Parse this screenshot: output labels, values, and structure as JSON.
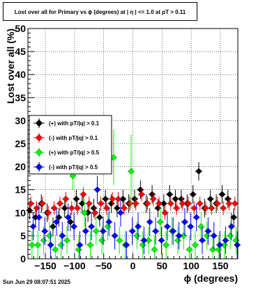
{
  "title": "Lost over all for Primary vs ϕ (degrees) at |  η | <= 1.0 at pT > 0.11",
  "footer": "Sun Jun 29 08:07:51 2025",
  "chart_data": {
    "type": "scatter",
    "xlabel": "ϕ (degrees)",
    "ylabel": "Lost over all (%)",
    "xlim": [
      -180,
      180
    ],
    "ylim": [
      0,
      50
    ],
    "x_ticks": [
      -150,
      -100,
      -50,
      0,
      50,
      100,
      150
    ],
    "x_tick_labels": [
      "−150",
      "−100",
      "−50",
      "0",
      "50",
      "100",
      "150"
    ],
    "y_ticks": [
      0,
      5,
      10,
      15,
      20,
      25,
      30,
      35,
      40,
      45,
      50
    ],
    "y_tick_labels": [
      "0",
      "5",
      "10",
      "15",
      "20",
      "25",
      "30",
      "35",
      "40",
      "45",
      "50"
    ],
    "grid": true,
    "legend_position": "center-left",
    "series": [
      {
        "name": "(+) with pT/|q| > 0.1",
        "color": "#000000",
        "x": [
          -177,
          -167,
          -157,
          -147,
          -137,
          -127,
          -117,
          -107,
          -97,
          -87,
          -77,
          -67,
          -57,
          -47,
          -37,
          -27,
          -17,
          -7,
          3,
          13,
          23,
          33,
          43,
          53,
          63,
          73,
          83,
          93,
          103,
          113,
          123,
          133,
          143,
          153,
          163,
          173
        ],
        "y": [
          10.5,
          9,
          12,
          10,
          7,
          9,
          11,
          8,
          13,
          12,
          10,
          11,
          9,
          13,
          12,
          11,
          13,
          12,
          13,
          15,
          12,
          14,
          11,
          12,
          14,
          13,
          13,
          12,
          14,
          19,
          11,
          13,
          12,
          14,
          13,
          9
        ],
        "err": [
          2,
          2,
          2,
          2,
          2,
          2,
          2,
          2,
          2,
          2,
          2,
          2,
          2,
          2,
          2,
          2,
          2,
          2,
          2,
          2,
          2,
          2,
          2,
          2,
          2,
          2,
          2,
          2,
          2,
          2,
          2,
          2,
          2,
          2,
          2,
          2
        ]
      },
      {
        "name": "(-) with pT/|q| > 0.1",
        "color": "#ff0000",
        "x": [
          -175,
          -165,
          -155,
          -145,
          -135,
          -125,
          -115,
          -105,
          -95,
          -85,
          -75,
          -65,
          -55,
          -45,
          -35,
          -25,
          -15,
          -5,
          5,
          15,
          25,
          35,
          45,
          55,
          65,
          75,
          85,
          95,
          105,
          115,
          125,
          135,
          145,
          155,
          165,
          175
        ],
        "y": [
          12,
          11,
          12,
          10,
          11,
          12,
          13,
          11,
          11,
          14,
          12,
          10,
          12,
          11,
          13,
          13,
          11,
          12,
          12,
          14,
          12,
          13,
          12,
          10,
          12,
          11,
          12,
          12,
          11,
          12,
          11,
          11,
          12,
          11,
          12,
          12
        ],
        "err": [
          1.5,
          1.5,
          1.5,
          1.5,
          1.5,
          1.5,
          1.5,
          1.5,
          1.5,
          1.5,
          1.5,
          1.5,
          1.5,
          1.5,
          1.5,
          1.5,
          1.5,
          1.5,
          1.5,
          1.5,
          1.5,
          1.5,
          1.5,
          1.5,
          1.5,
          1.5,
          1.5,
          1.5,
          1.5,
          1.5,
          1.5,
          1.5,
          1.5,
          1.5,
          1.5,
          1.5
        ]
      },
      {
        "name": "(+) with pT/|q| > 0.5",
        "color": "#00ff00",
        "x": [
          -173,
          -163,
          -153,
          -143,
          -133,
          -123,
          -113,
          -103,
          -93,
          -83,
          -73,
          -63,
          -53,
          -43,
          -33,
          -23,
          -13,
          -3,
          7,
          17,
          27,
          37,
          47,
          57,
          67,
          77,
          87,
          97,
          107,
          117,
          127,
          137,
          147,
          157,
          167,
          177
        ],
        "y": [
          3,
          3,
          4,
          5,
          2,
          3,
          4,
          18,
          2,
          10,
          3,
          6,
          4,
          7,
          22,
          4,
          3,
          19,
          5,
          3,
          4,
          2,
          8,
          3,
          6,
          4,
          5,
          2,
          3,
          7,
          5,
          2,
          2,
          3,
          5,
          4
        ],
        "err": [
          3,
          3,
          3,
          3,
          3,
          3,
          3,
          3,
          3,
          3,
          3,
          3,
          3,
          3,
          6,
          3,
          3,
          8,
          3,
          3,
          3,
          3,
          3,
          3,
          3,
          3,
          3,
          3,
          3,
          3,
          3,
          3,
          3,
          3,
          3,
          3
        ]
      },
      {
        "name": "(-) with pT/|q| > 0.5",
        "color": "#0000ff",
        "x": [
          -171,
          -161,
          -151,
          -141,
          -131,
          -121,
          -111,
          -101,
          -91,
          -81,
          -71,
          -61,
          -51,
          -41,
          -31,
          -21,
          -11,
          -1,
          9,
          19,
          29,
          39,
          49,
          59,
          69,
          79,
          89,
          99,
          109,
          119,
          129,
          139,
          149,
          159,
          169,
          179
        ],
        "y": [
          7,
          9,
          6,
          3,
          8,
          5,
          9,
          7,
          3,
          6,
          7,
          15,
          6,
          8,
          5,
          10,
          3,
          6,
          7,
          4,
          8,
          6,
          4,
          7,
          6,
          5,
          8,
          7,
          9,
          4,
          6,
          5,
          3,
          4,
          7,
          3
        ],
        "err": [
          3,
          3,
          3,
          3,
          3,
          3,
          3,
          3,
          3,
          3,
          3,
          3,
          3,
          3,
          3,
          3,
          3,
          3,
          3,
          3,
          3,
          3,
          3,
          3,
          3,
          3,
          3,
          3,
          3,
          3,
          3,
          3,
          3,
          3,
          3,
          3
        ]
      }
    ]
  }
}
